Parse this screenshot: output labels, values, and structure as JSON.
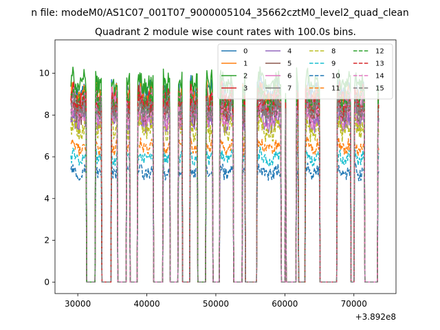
{
  "chart_data": {
    "type": "line",
    "suptitle": "n file: modeM0/AS1C07_001T07_9000005104_35662cztM0_level2_quad_clean",
    "title": "Quadrant 2 module wise count rates with 100.0s bins.",
    "xlabel": "",
    "ylabel": "",
    "x_offset_label": "+3.892e8",
    "xlim": [
      26700,
      76100
    ],
    "ylim": [
      -0.55,
      11.6
    ],
    "x_ticks": [
      30000,
      40000,
      50000,
      60000,
      70000
    ],
    "x_tick_labels": [
      "30000",
      "40000",
      "50000",
      "60000",
      "70000"
    ],
    "y_ticks": [
      0,
      2,
      4,
      6,
      8,
      10
    ],
    "y_tick_labels": [
      "0",
      "2",
      "4",
      "6",
      "8",
      "10"
    ],
    "legend_location": "top-right",
    "legend_columns": 4,
    "data_span": [
      29000,
      73600
    ],
    "zero_gaps": [
      [
        31300,
        32550
      ],
      [
        33450,
        34800
      ],
      [
        35800,
        37050
      ],
      [
        37550,
        38650
      ],
      [
        41000,
        42300
      ],
      [
        43350,
        44550
      ],
      [
        45150,
        46250
      ],
      [
        47400,
        48550
      ],
      [
        49550,
        50550
      ],
      [
        52550,
        53800
      ],
      [
        54250,
        55900
      ],
      [
        59450,
        60000
      ],
      [
        60200,
        61650
      ],
      [
        62000,
        62900
      ],
      [
        65050,
        67550
      ],
      [
        69550,
        70000
      ],
      [
        71550,
        73450
      ]
    ],
    "series": [
      {
        "name": "0",
        "color": "#1f77b4",
        "dash": "solid",
        "level": 9.2
      },
      {
        "name": "1",
        "color": "#ff7f0e",
        "dash": "solid",
        "level": 9.0
      },
      {
        "name": "2",
        "color": "#2ca02c",
        "dash": "solid",
        "level": 9.6
      },
      {
        "name": "3",
        "color": "#d62728",
        "dash": "solid",
        "level": 8.9
      },
      {
        "name": "4",
        "color": "#9467bd",
        "dash": "solid",
        "level": 7.8
      },
      {
        "name": "5",
        "color": "#8c564b",
        "dash": "solid",
        "level": 8.2
      },
      {
        "name": "6",
        "color": "#e377c2",
        "dash": "solid",
        "level": 8.7
      },
      {
        "name": "7",
        "color": "#7f7f7f",
        "dash": "solid",
        "level": 8.6
      },
      {
        "name": "8",
        "color": "#bcbd22",
        "dash": "dashed",
        "level": 7.4
      },
      {
        "name": "9",
        "color": "#17becf",
        "dash": "dashed",
        "level": 6.1
      },
      {
        "name": "10",
        "color": "#1f77b4",
        "dash": "dashed",
        "level": 5.4
      },
      {
        "name": "11",
        "color": "#ff7f0e",
        "dash": "dashed",
        "level": 6.6
      },
      {
        "name": "12",
        "color": "#2ca02c",
        "dash": "dashed",
        "level": 8.8
      },
      {
        "name": "13",
        "color": "#d62728",
        "dash": "dashed",
        "level": 8.5
      },
      {
        "name": "14",
        "color": "#e377c2",
        "dash": "dashed",
        "level": 8.0
      },
      {
        "name": "15",
        "color": "#7f7f7f",
        "dash": "dashed",
        "level": 8.3
      }
    ]
  }
}
